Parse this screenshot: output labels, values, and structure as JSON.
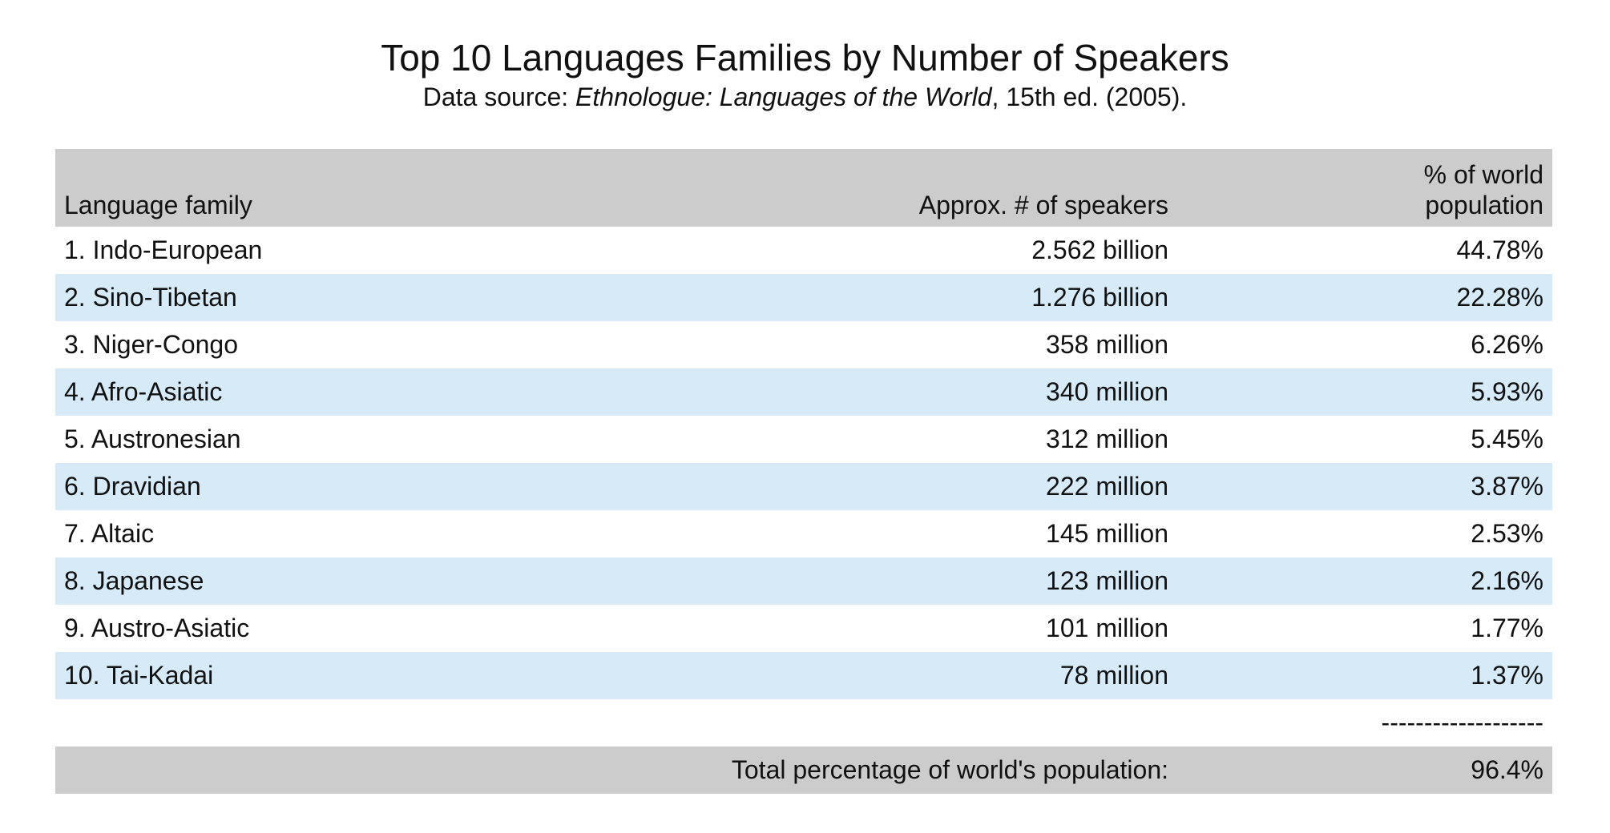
{
  "title": "Top 10 Languages Families by Number of Speakers",
  "subtitle": {
    "prefix": "Data source: ",
    "italic": "Ethnologue: Languages of the World",
    "suffix": ", 15th ed. (2005)."
  },
  "table": {
    "headers": {
      "family": "Language family",
      "speakers": "Approx. # of speakers",
      "percent_line1": "% of world",
      "percent_line2": "population"
    },
    "rows": [
      {
        "family": "1. Indo-European",
        "speakers": "2.562 billion",
        "percent": "44.78%"
      },
      {
        "family": "2. Sino-Tibetan",
        "speakers": "1.276 billion",
        "percent": "22.28%"
      },
      {
        "family": "3. Niger-Congo",
        "speakers": "358 million",
        "percent": "6.26%"
      },
      {
        "family": "4. Afro-Asiatic",
        "speakers": "340 million",
        "percent": "5.93%"
      },
      {
        "family": "5. Austronesian",
        "speakers": "312 million",
        "percent": "5.45%"
      },
      {
        "family": "6. Dravidian",
        "speakers": "222 million",
        "percent": "3.87%"
      },
      {
        "family": "7. Altaic",
        "speakers": "145 million",
        "percent": "2.53%"
      },
      {
        "family": "8. Japanese",
        "speakers": "123 million",
        "percent": "2.16%"
      },
      {
        "family": "9. Austro-Asiatic",
        "speakers": "101 million",
        "percent": "1.77%"
      },
      {
        "family": "10. Tai-Kadai",
        "speakers": "78 million",
        "percent": "1.37%"
      }
    ],
    "separator": "-------------------",
    "total_label": "Total percentage of world's population:",
    "total_value": "96.4%"
  },
  "colors": {
    "header_bg": "#cccccc",
    "stripe_bg": "#d6eaf8",
    "row_bg": "#ffffff"
  }
}
